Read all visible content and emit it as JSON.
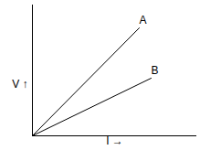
{
  "chart_data": {
    "type": "line",
    "x_label": "I →",
    "y_label": "V ↑",
    "series": [
      {
        "name": "A",
        "color": "#000000",
        "x": [
          0,
          117
        ],
        "values": [
          0,
          118
        ]
      },
      {
        "name": "B",
        "color": "#000000",
        "x": [
          0,
          130
        ],
        "values": [
          0,
          63
        ]
      }
    ],
    "xlim": [
      0,
      180
    ],
    "ylim": [
      0,
      143
    ],
    "tick_labels": false,
    "grid": false
  }
}
